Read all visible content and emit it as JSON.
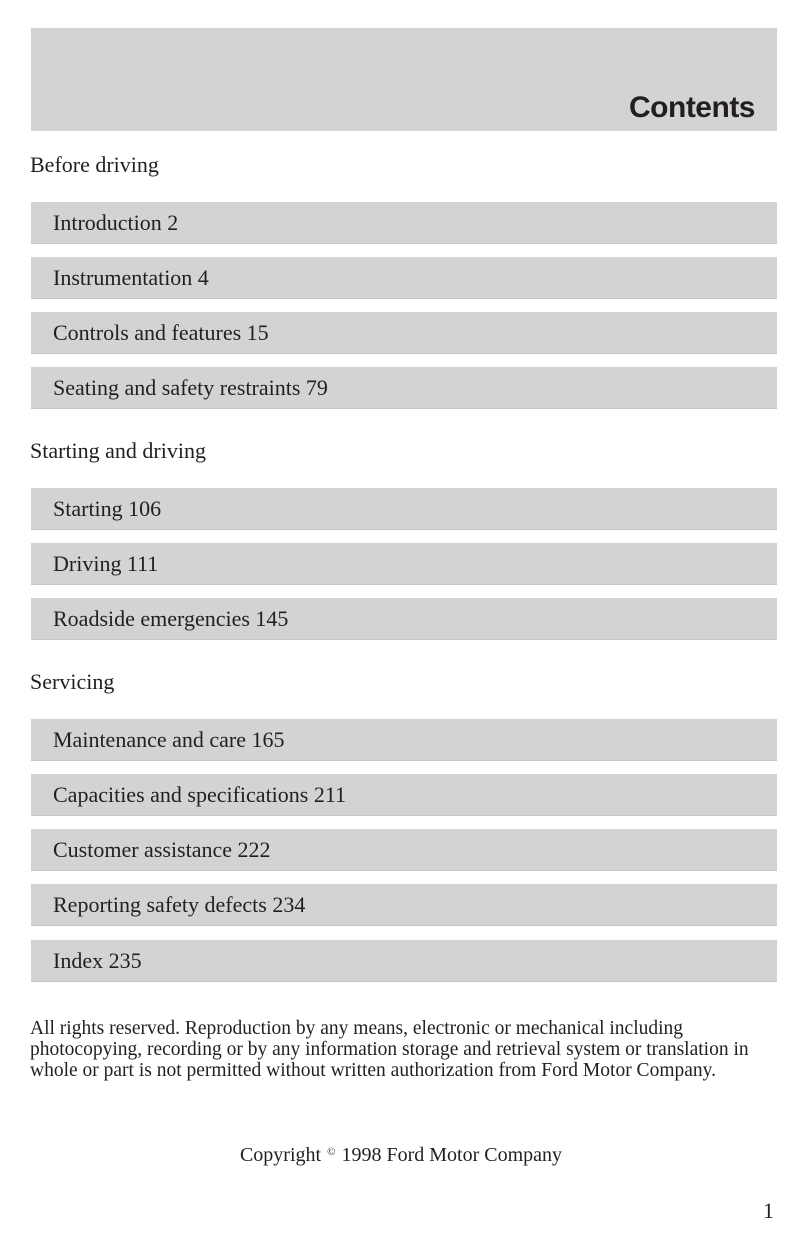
{
  "header": {
    "title": "Contents"
  },
  "sections": [
    {
      "title": "Before driving",
      "items": [
        {
          "label": "Introduction 2"
        },
        {
          "label": "Instrumentation 4"
        },
        {
          "label": "Controls and features 15"
        },
        {
          "label": "Seating and safety restraints 79"
        }
      ]
    },
    {
      "title": "Starting and driving",
      "items": [
        {
          "label": "Starting 106"
        },
        {
          "label": "Driving 111"
        },
        {
          "label": "Roadside emergencies 145"
        }
      ]
    },
    {
      "title": "Servicing",
      "items": [
        {
          "label": "Maintenance and care 165"
        },
        {
          "label": "Capacities and specifications 211"
        },
        {
          "label": "Customer assistance 222"
        },
        {
          "label": "Reporting safety defects 234"
        },
        {
          "label": "Index 235"
        }
      ]
    }
  ],
  "footer": {
    "legal": "All rights reserved. Reproduction by any means, electronic or mechanical including photocopying, recording or by any information storage and retrieval system or translation in whole or part is not permitted without written authorization from Ford Motor Company.",
    "copyright_prefix": "Copyright",
    "copyright_symbol": "©",
    "copyright_suffix": "1998 Ford Motor Company",
    "page_number": "1"
  }
}
